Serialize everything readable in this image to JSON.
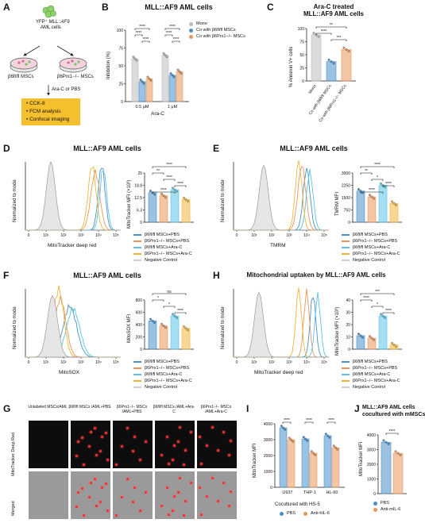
{
  "panel_letters": {
    "a": "A",
    "b": "B",
    "c": "C",
    "d": "D",
    "e": "E",
    "f": "F",
    "g": "G",
    "h": "H",
    "i": "I",
    "j": "J"
  },
  "panel_a": {
    "cells_label_1": "YFP",
    "cells_label_2": "MLL::AF9",
    "cells_label_3": "AML cells",
    "dish_left": "β6fl/fl MSCs",
    "dish_right": "β6Prx1−/− MSCs",
    "treatment": "Ara-C or PBS",
    "assays": [
      "• CCK-8",
      "• FCM analysis",
      "• Confocal imaging"
    ]
  },
  "panel_b": {
    "title": "MLL::AF9 AML cells",
    "ylabel": "Inhibition (%)",
    "xlabel": "Ara-C",
    "legend": [
      "Mono",
      "Co with β6fl/fl MSCs",
      "Co with β6Prx1−/− MSCs"
    ],
    "sig": [
      "****",
      "****",
      "****",
      "****",
      "****",
      "****"
    ]
  },
  "panel_c": {
    "title_1": "Ara-C treated",
    "title_2": "MLL::AF9 AML cells",
    "ylabel": "% Annexin V+ cells",
    "categories": [
      "Mono",
      "Co with β6fl/fl MSCs",
      "Co with β6Prx1−/− MSCs"
    ],
    "sig": [
      "**",
      "****",
      "***"
    ]
  },
  "panel_d": {
    "title": "MLL::AF9 AML cells",
    "hist_ylabel": "Normalized to mode",
    "hist_xlabel": "MitoTracker deep red",
    "bar_ylabel": "MitoTracker MFI (×10³)",
    "sig": [
      "****",
      "**",
      "****",
      "****",
      "****"
    ]
  },
  "panel_e": {
    "title": "MLL::AF9 AML cells",
    "hist_ylabel": "Normalized to mode",
    "hist_xlabel": "TMRM",
    "bar_ylabel": "TMRM MFI",
    "sig": [
      "****",
      "**",
      "*",
      "****",
      "****"
    ]
  },
  "panel_f": {
    "title": "MLL::AF9 AML cells",
    "hist_ylabel": "Normalized to mode",
    "hist_xlabel": "MitoSOX",
    "bar_ylabel": "MitoSOX MFI",
    "sig": [
      "ns",
      "*",
      "*",
      "****"
    ]
  },
  "panel_h": {
    "title": "Mitochondrial uptaken by MLL::AF9 AML cells",
    "hist_ylabel": "Normalized to mode",
    "hist_xlabel": "MitoTracker deep red",
    "bar_ylabel": "MitoTracker MFI (×10³)",
    "sig": [
      "***",
      "****",
      "*",
      "****"
    ]
  },
  "legend_conditions": [
    "β6fl/fl MSCs+PBS",
    "β6Prx1−/− MSCs+PBS",
    "β6fl/fl MSCs+Ara-C",
    "β6Prx1−/− MSCs+Ara-C",
    "Negative Control"
  ],
  "panel_g": {
    "columns": [
      "Unlabeled MSCs/AML",
      "β6fl/fl MSCs /AML+PBS",
      "β6Prx1−/− MSCs /AML+PBS",
      "β6fl/fl MSCs /AML+Ara-C",
      "β6Prx1−/− MSCs /AML+Ara-C"
    ],
    "row1": "MitoTracker Deep Red",
    "row2": "Merged"
  },
  "panel_i": {
    "ylabel": "MitoTracker MFI",
    "categories": [
      "U937",
      "THP-1",
      "HL-60"
    ],
    "xlabel": "Cocultured with HS-5",
    "legend": [
      "PBS",
      "Anti-hIL-6"
    ],
    "sig": [
      "****",
      "****",
      "****"
    ]
  },
  "panel_j": {
    "title_1": "MLL::AF9 AML cells",
    "title_2": "cocultured with mMSCs",
    "ylabel": "MitoTracker MFI",
    "legend": [
      "PBS",
      "Anti-mIL-6"
    ],
    "sig": [
      "****"
    ]
  },
  "colors": {
    "mono": "#bdbdbd",
    "flfl": "#4a90c8",
    "ko": "#e8965a",
    "flflara": "#5bc3e6",
    "koara": "#f0b63c",
    "neg": "#cfcfcf",
    "orange_box": "#f6bf2d"
  },
  "chart_data": [
    {
      "type": "bar",
      "title": "MLL::AF9 AML cells",
      "ylabel": "Inhibition (%)",
      "xlabel": "Ara-C",
      "categories": [
        "0.5 μM",
        "1 μM"
      ],
      "ylim": [
        0,
        100
      ],
      "series": [
        {
          "name": "Mono",
          "values": [
            60,
            65
          ]
        },
        {
          "name": "Co with β6fl/fl MSCs",
          "values": [
            28,
            37
          ]
        },
        {
          "name": "Co with β6Prx1−/− MSCs",
          "values": [
            32,
            42
          ]
        }
      ]
    },
    {
      "type": "bar",
      "ylabel": "% Annexin V+ cells",
      "categories": [
        "Mono",
        "Co with β6fl/fl MSCs",
        "Co with β6Prx1−/− MSCs"
      ],
      "ylim": [
        0,
        100
      ],
      "values": [
        88,
        37,
        60
      ]
    },
    {
      "type": "bar",
      "ylabel": "MitoTracker MFI (×10³)",
      "categories": [
        "β6fl/fl MSCs+PBS",
        "β6Prx1−/− MSCs+PBS",
        "β6fl/fl MSCs+Ara-C",
        "β6Prx1−/− MSCs+Ara-C"
      ],
      "ylim": [
        0,
        25
      ],
      "values": [
        15,
        13.5,
        16.5,
        11.5
      ]
    },
    {
      "type": "bar",
      "ylabel": "TMRM MFI",
      "categories": [
        "β6fl/fl MSCs+PBS",
        "β6Prx1−/− MSCs+PBS",
        "β6fl/fl MSCs+Ara-C",
        "β6Prx1−/− MSCs+Ara-C"
      ],
      "ylim": [
        0,
        3000
      ],
      "values": [
        1900,
        1550,
        2250,
        1150
      ]
    },
    {
      "type": "bar",
      "ylabel": "MitoSOX MFI",
      "categories": [
        "β6fl/fl MSCs+PBS",
        "β6Prx1−/− MSCs+PBS",
        "β6fl/fl MSCs+Ara-C",
        "β6Prx1−/− MSCs+Ara-C"
      ],
      "ylim": [
        0,
        800
      ],
      "values": [
        460,
        380,
        540,
        340
      ]
    },
    {
      "type": "bar",
      "ylabel": "MitoTracker MFI (×10³)",
      "categories": [
        "β6fl/fl MSCs+PBS",
        "β6Prx1−/− MSCs+PBS",
        "β6fl/fl MSCs+Ara-C",
        "β6Prx1−/− MSCs+Ara-C"
      ],
      "ylim": [
        0,
        40
      ],
      "values": [
        11,
        9,
        27,
        3.5
      ]
    },
    {
      "type": "bar",
      "ylabel": "MitoTracker MFI",
      "xlabel": "Cocultured with HS-5",
      "categories": [
        "U937",
        "THP-1",
        "HL-60"
      ],
      "ylim": [
        0,
        4000
      ],
      "series": [
        {
          "name": "PBS",
          "values": [
            3750,
            3050,
            3250
          ]
        },
        {
          "name": "Anti-hIL-6",
          "values": [
            3000,
            2150,
            2500
          ]
        }
      ]
    },
    {
      "type": "bar",
      "ylabel": "MitoTracker MFI",
      "categories": [
        "PBS",
        "Anti-mIL-6"
      ],
      "ylim": [
        0,
        4000
      ],
      "values": [
        3500,
        2750
      ]
    }
  ]
}
